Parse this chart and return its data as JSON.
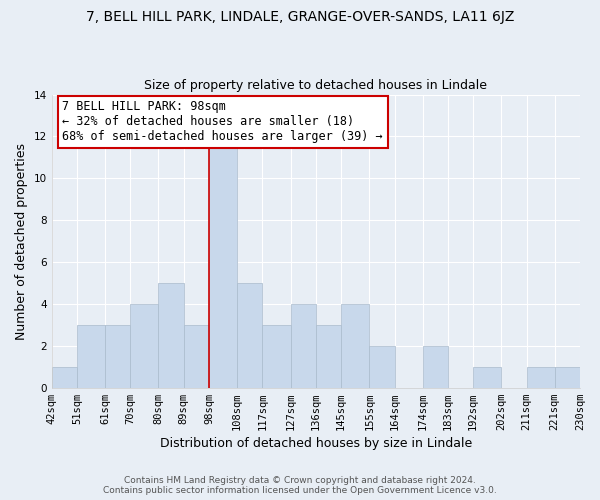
{
  "title": "7, BELL HILL PARK, LINDALE, GRANGE-OVER-SANDS, LA11 6JZ",
  "subtitle": "Size of property relative to detached houses in Lindale",
  "xlabel": "Distribution of detached houses by size in Lindale",
  "ylabel": "Number of detached properties",
  "bins": [
    42,
    51,
    61,
    70,
    80,
    89,
    98,
    108,
    117,
    127,
    136,
    145,
    155,
    164,
    174,
    183,
    192,
    202,
    211,
    221,
    230
  ],
  "bin_labels": [
    "42sqm",
    "51sqm",
    "61sqm",
    "70sqm",
    "80sqm",
    "89sqm",
    "98sqm",
    "108sqm",
    "117sqm",
    "127sqm",
    "136sqm",
    "145sqm",
    "155sqm",
    "164sqm",
    "174sqm",
    "183sqm",
    "192sqm",
    "202sqm",
    "211sqm",
    "221sqm",
    "230sqm"
  ],
  "counts": [
    1,
    3,
    3,
    4,
    5,
    3,
    12,
    5,
    3,
    4,
    3,
    4,
    2,
    0,
    2,
    0,
    1,
    0,
    1,
    1
  ],
  "bar_color": "#c8d8eb",
  "bar_edge_color": "#aabbcc",
  "highlight_bin_index": 6,
  "highlight_line_color": "#cc0000",
  "ylim": [
    0,
    14
  ],
  "yticks": [
    0,
    2,
    4,
    6,
    8,
    10,
    12,
    14
  ],
  "annotation_title": "7 BELL HILL PARK: 98sqm",
  "annotation_line1": "← 32% of detached houses are smaller (18)",
  "annotation_line2": "68% of semi-detached houses are larger (39) →",
  "annotation_box_color": "#ffffff",
  "annotation_box_edge": "#cc0000",
  "footer_line1": "Contains HM Land Registry data © Crown copyright and database right 2024.",
  "footer_line2": "Contains public sector information licensed under the Open Government Licence v3.0.",
  "background_color": "#e8eef5",
  "grid_color": "#ffffff",
  "title_fontsize": 10,
  "subtitle_fontsize": 9,
  "axis_label_fontsize": 9,
  "tick_fontsize": 7.5,
  "annotation_fontsize": 8.5,
  "footer_fontsize": 6.5
}
